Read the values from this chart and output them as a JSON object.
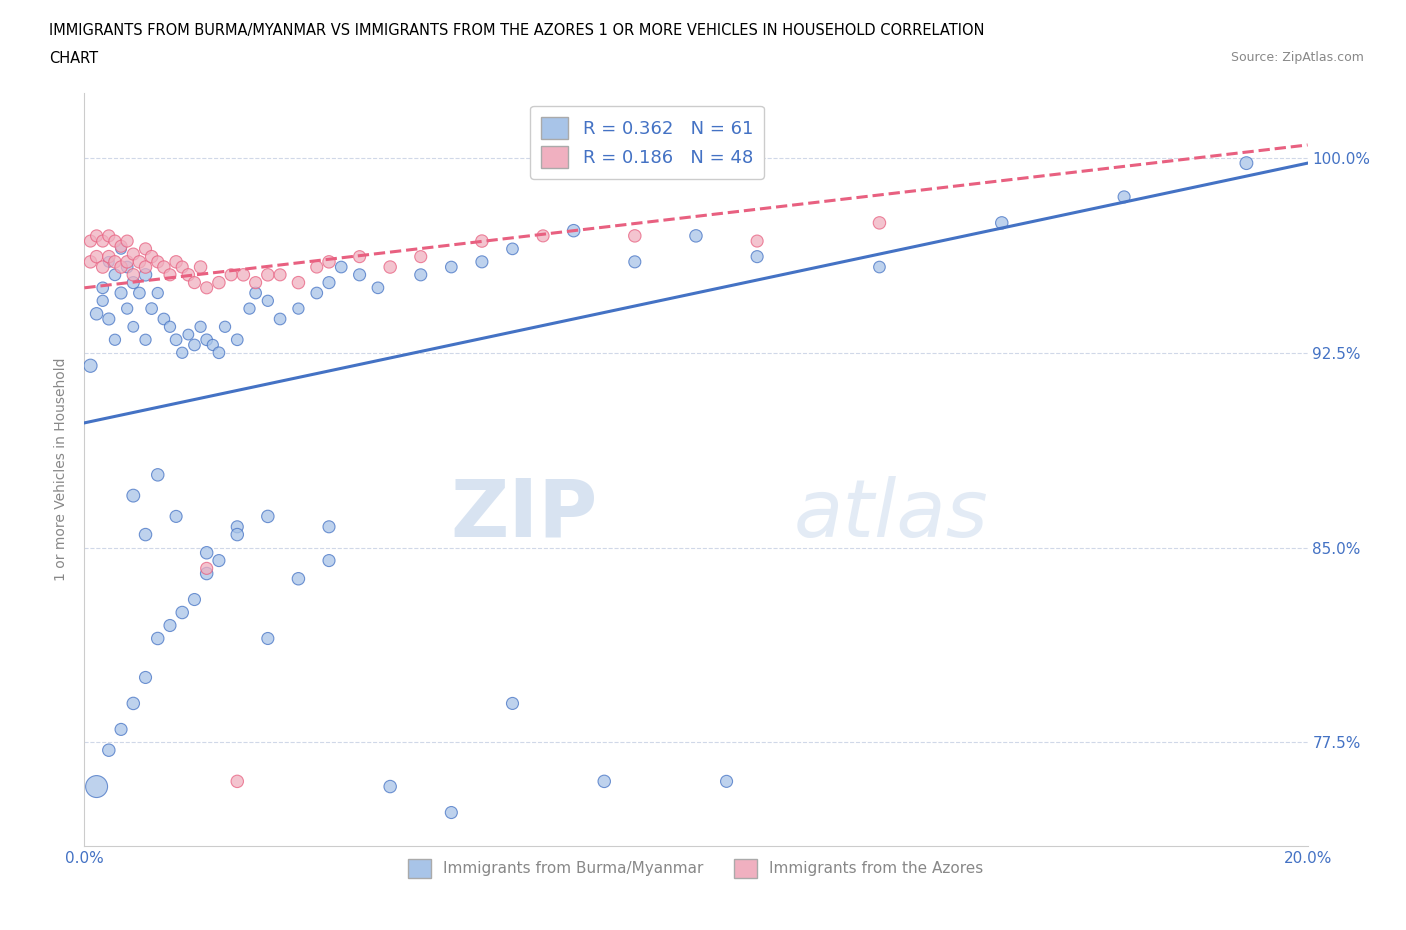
{
  "title_line1": "IMMIGRANTS FROM BURMA/MYANMAR VS IMMIGRANTS FROM THE AZORES 1 OR MORE VEHICLES IN HOUSEHOLD CORRELATION",
  "title_line2": "CHART",
  "source": "Source: ZipAtlas.com",
  "ylabel": "1 or more Vehicles in Household",
  "xlim": [
    0.0,
    0.2
  ],
  "ylim": [
    0.735,
    1.025
  ],
  "yticks": [
    0.775,
    0.85,
    0.925,
    1.0
  ],
  "ytick_labels": [
    "77.5%",
    "85.0%",
    "92.5%",
    "100.0%"
  ],
  "xticks": [
    0.0,
    0.05,
    0.1,
    0.15,
    0.2
  ],
  "xtick_labels": [
    "0.0%",
    "",
    "",
    "",
    "20.0%"
  ],
  "watermark_zip": "ZIP",
  "watermark_atlas": "atlas",
  "legend_entries": [
    {
      "label": "Immigrants from Burma/Myanmar",
      "R": 0.362,
      "N": 61
    },
    {
      "label": "Immigrants from the Azores",
      "R": 0.186,
      "N": 48
    }
  ],
  "blue_line_color": "#4472c4",
  "pink_line_color": "#e86080",
  "blue_fill": "#a8c4e8",
  "pink_fill": "#f0b0c0",
  "blue_edge": "#4472c4",
  "pink_edge": "#e86080",
  "grid_color": "#d0d8e8",
  "tick_color": "#4472c4",
  "ylabel_color": "#888888",
  "scatter_blue_x": [
    0.001,
    0.002,
    0.003,
    0.003,
    0.004,
    0.004,
    0.005,
    0.005,
    0.006,
    0.006,
    0.007,
    0.007,
    0.008,
    0.008,
    0.009,
    0.01,
    0.01,
    0.011,
    0.012,
    0.013,
    0.014,
    0.015,
    0.016,
    0.017,
    0.018,
    0.019,
    0.02,
    0.021,
    0.022,
    0.023,
    0.025,
    0.027,
    0.028,
    0.03,
    0.032,
    0.035,
    0.038,
    0.04,
    0.042,
    0.045,
    0.048,
    0.055,
    0.06,
    0.065,
    0.07,
    0.08,
    0.09,
    0.1,
    0.11,
    0.13,
    0.15,
    0.17,
    0.19,
    0.008,
    0.01,
    0.012,
    0.015,
    0.02,
    0.025,
    0.03,
    0.04
  ],
  "scatter_blue_y": [
    0.92,
    0.94,
    0.95,
    0.945,
    0.938,
    0.96,
    0.955,
    0.93,
    0.948,
    0.965,
    0.958,
    0.942,
    0.952,
    0.935,
    0.948,
    0.955,
    0.93,
    0.942,
    0.948,
    0.938,
    0.935,
    0.93,
    0.925,
    0.932,
    0.928,
    0.935,
    0.93,
    0.928,
    0.925,
    0.935,
    0.93,
    0.942,
    0.948,
    0.945,
    0.938,
    0.942,
    0.948,
    0.952,
    0.958,
    0.955,
    0.95,
    0.955,
    0.958,
    0.96,
    0.965,
    0.972,
    0.96,
    0.97,
    0.962,
    0.958,
    0.975,
    0.985,
    0.998,
    0.87,
    0.855,
    0.878,
    0.862,
    0.848,
    0.858,
    0.862,
    0.858
  ],
  "scatter_blue_s": [
    90,
    80,
    70,
    65,
    75,
    60,
    70,
    65,
    75,
    60,
    70,
    65,
    75,
    60,
    70,
    80,
    65,
    70,
    65,
    70,
    65,
    70,
    65,
    60,
    70,
    65,
    70,
    65,
    70,
    65,
    70,
    65,
    70,
    65,
    70,
    65,
    70,
    75,
    70,
    75,
    70,
    75,
    70,
    75,
    70,
    80,
    75,
    80,
    75,
    70,
    80,
    75,
    85,
    85,
    80,
    80,
    75,
    80,
    75,
    80,
    75
  ],
  "scatter_blue_x2": [
    0.002,
    0.004,
    0.006,
    0.008,
    0.01,
    0.012,
    0.014,
    0.016,
    0.018,
    0.02,
    0.022,
    0.025,
    0.03,
    0.035,
    0.04,
    0.05,
    0.06,
    0.07,
    0.085,
    0.105
  ],
  "scatter_blue_y2": [
    0.758,
    0.772,
    0.78,
    0.79,
    0.8,
    0.815,
    0.82,
    0.825,
    0.83,
    0.84,
    0.845,
    0.855,
    0.815,
    0.838,
    0.845,
    0.758,
    0.748,
    0.79,
    0.76,
    0.76
  ],
  "scatter_blue_s2": [
    250,
    80,
    75,
    80,
    75,
    80,
    75,
    80,
    75,
    80,
    75,
    80,
    75,
    80,
    75,
    80,
    75,
    75,
    80,
    75
  ],
  "scatter_pink_x": [
    0.001,
    0.001,
    0.002,
    0.002,
    0.003,
    0.003,
    0.004,
    0.004,
    0.005,
    0.005,
    0.006,
    0.006,
    0.007,
    0.007,
    0.008,
    0.008,
    0.009,
    0.01,
    0.01,
    0.011,
    0.012,
    0.013,
    0.014,
    0.015,
    0.016,
    0.017,
    0.018,
    0.019,
    0.02,
    0.022,
    0.024,
    0.026,
    0.028,
    0.03,
    0.032,
    0.035,
    0.038,
    0.04,
    0.045,
    0.05,
    0.055,
    0.065,
    0.075,
    0.09,
    0.11,
    0.13,
    0.02,
    0.025
  ],
  "scatter_pink_y": [
    0.96,
    0.968,
    0.962,
    0.97,
    0.958,
    0.968,
    0.962,
    0.97,
    0.96,
    0.968,
    0.958,
    0.966,
    0.96,
    0.968,
    0.955,
    0.963,
    0.96,
    0.958,
    0.965,
    0.962,
    0.96,
    0.958,
    0.955,
    0.96,
    0.958,
    0.955,
    0.952,
    0.958,
    0.95,
    0.952,
    0.955,
    0.955,
    0.952,
    0.955,
    0.955,
    0.952,
    0.958,
    0.96,
    0.962,
    0.958,
    0.962,
    0.968,
    0.97,
    0.97,
    0.968,
    0.975,
    0.842,
    0.76
  ],
  "scatter_pink_s": [
    80,
    75,
    80,
    75,
    80,
    75,
    80,
    75,
    80,
    75,
    80,
    75,
    80,
    75,
    80,
    75,
    80,
    80,
    75,
    80,
    75,
    80,
    75,
    80,
    75,
    80,
    75,
    80,
    75,
    80,
    75,
    80,
    75,
    80,
    75,
    80,
    75,
    80,
    75,
    80,
    75,
    80,
    75,
    80,
    75,
    80,
    75,
    80
  ],
  "blue_line_x0": 0.0,
  "blue_line_y0": 0.898,
  "blue_line_x1": 0.2,
  "blue_line_y1": 0.998,
  "pink_line_x0": 0.0,
  "pink_line_y0": 0.95,
  "pink_line_x1": 0.2,
  "pink_line_y1": 1.005
}
